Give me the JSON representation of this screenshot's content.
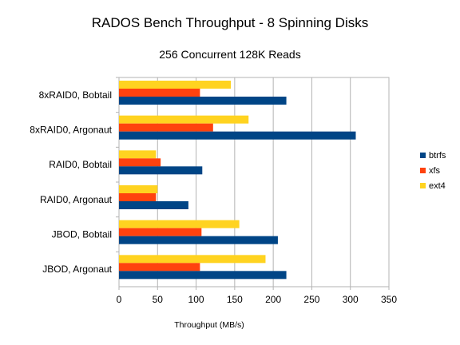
{
  "chart_data": {
    "type": "bar",
    "orientation": "horizontal",
    "title": "RADOS Bench Throughput - 8 Spinning Disks",
    "subtitle": "256 Concurrent 128K Reads",
    "xlabel": "Throughput (MB/s)",
    "ylabel": "",
    "xlim": [
      0,
      350
    ],
    "xticks": [
      "0",
      "50",
      "100",
      "150",
      "200",
      "250",
      "300",
      "350"
    ],
    "grid": true,
    "legend_position": "right",
    "categories": [
      "8xRAID0, Bobtail",
      "8xRAID0, Argonaut",
      "RAID0, Bobtail",
      "RAID0, Argonaut",
      "JBOD, Bobtail",
      "JBOD, Argonaut"
    ],
    "series": [
      {
        "name": "ext4",
        "color": "#ffd320",
        "values": [
          145,
          168,
          48,
          50,
          156,
          190
        ]
      },
      {
        "name": "xfs",
        "color": "#ff420e",
        "values": [
          105,
          122,
          54,
          48,
          107,
          105
        ]
      },
      {
        "name": "btrfs",
        "color": "#004586",
        "values": [
          217,
          307,
          108,
          90,
          206,
          217
        ]
      }
    ],
    "legend_order": [
      "btrfs",
      "xfs",
      "ext4"
    ]
  }
}
